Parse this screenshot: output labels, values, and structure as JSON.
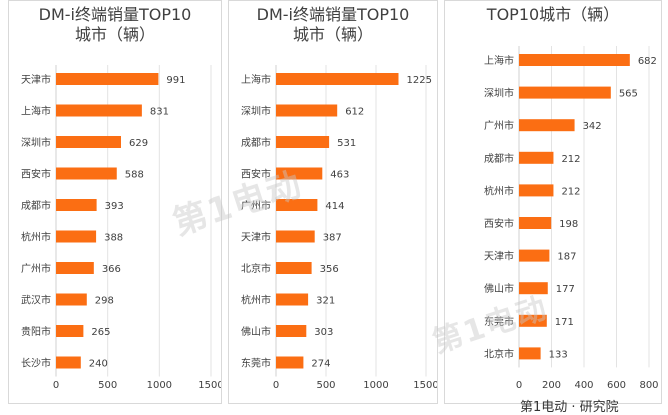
{
  "chart_data": [
    {
      "type": "bar",
      "orientation": "horizontal",
      "title_lines": [
        "DM-i终端销量TOP10",
        "城市（辆）"
      ],
      "categories": [
        "天津市",
        "上海市",
        "深圳市",
        "西安市",
        "成都市",
        "杭州市",
        "广州市",
        "武汉市",
        "贵阳市",
        "长沙市"
      ],
      "values": [
        991,
        831,
        629,
        588,
        393,
        388,
        366,
        298,
        265,
        240
      ],
      "xlim": [
        0,
        1500
      ],
      "xticks": [
        0,
        500,
        1000,
        1500
      ],
      "grid": true,
      "bar_color": "#fb6e13"
    },
    {
      "type": "bar",
      "orientation": "horizontal",
      "title_lines": [
        "DM-i终端销量TOP10",
        "城市（辆）"
      ],
      "categories": [
        "上海市",
        "深圳市",
        "成都市",
        "西安市",
        "广州市",
        "天津市",
        "北京市",
        "杭州市",
        "佛山市",
        "东莞市"
      ],
      "values": [
        1225,
        612,
        531,
        463,
        414,
        387,
        356,
        321,
        303,
        274
      ],
      "xlim": [
        0,
        1500
      ],
      "xticks": [
        0,
        500,
        1000,
        1500
      ],
      "grid": true,
      "bar_color": "#fb6e13"
    },
    {
      "type": "bar",
      "orientation": "horizontal",
      "title_lines": [
        "TOP10城市（辆）"
      ],
      "categories": [
        "上海市",
        "深圳市",
        "广州市",
        "成都市",
        "杭州市",
        "西安市",
        "天津市",
        "佛山市",
        "东莞市",
        "北京市"
      ],
      "values": [
        682,
        565,
        342,
        212,
        212,
        198,
        187,
        177,
        171,
        133
      ],
      "xlim": [
        0,
        800
      ],
      "xticks": [
        0,
        200,
        400,
        600,
        800
      ],
      "grid": true,
      "bar_color": "#fb6e13"
    }
  ],
  "watermark": "第1电动",
  "footer": "第1电动 · 研究院"
}
